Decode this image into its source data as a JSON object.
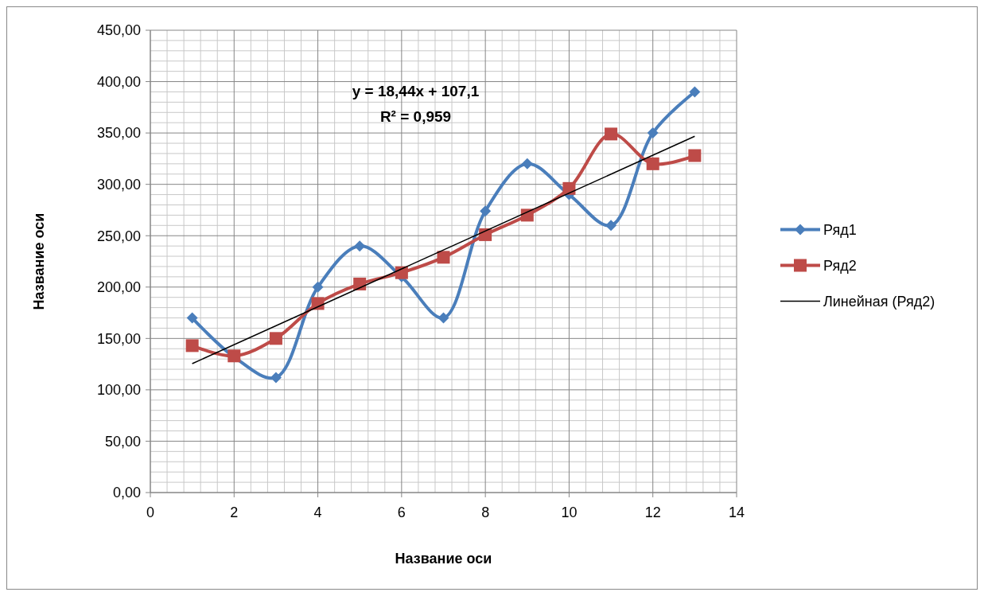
{
  "chart_data": {
    "type": "line",
    "xlabel": "Название оси",
    "ylabel": "Название оси",
    "xlim": [
      0,
      14
    ],
    "xticks": [
      0,
      2,
      4,
      6,
      8,
      10,
      12,
      14
    ],
    "ylim": [
      0,
      450
    ],
    "yticks": [
      {
        "value": 0,
        "label": "0,00"
      },
      {
        "value": 50,
        "label": "50,00"
      },
      {
        "value": 100,
        "label": "100,00"
      },
      {
        "value": 150,
        "label": "150,00"
      },
      {
        "value": 200,
        "label": "200,00"
      },
      {
        "value": 250,
        "label": "250,00"
      },
      {
        "value": 300,
        "label": "300,00"
      },
      {
        "value": 350,
        "label": "350,00"
      },
      {
        "value": 400,
        "label": "400,00"
      },
      {
        "value": 450,
        "label": "450,00"
      }
    ],
    "grid": true,
    "legend": "right",
    "x": [
      1,
      2,
      3,
      4,
      5,
      6,
      7,
      8,
      9,
      10,
      11,
      12,
      13
    ],
    "series": [
      {
        "name": "Ряд1",
        "color": "#4a7ebb",
        "marker": "diamond",
        "values": [
          170,
          132,
          112,
          200,
          240,
          210,
          170,
          274,
          320,
          290,
          260,
          350,
          390
        ]
      },
      {
        "name": "Ряд2",
        "color": "#be4b48",
        "marker": "square",
        "values": [
          143,
          133,
          150,
          184,
          203,
          214,
          229,
          251,
          270,
          296,
          349,
          320,
          328
        ]
      },
      {
        "name": "Линейная (Ряд2)",
        "color": "#000000",
        "marker": "none",
        "x": [
          1,
          13
        ],
        "values": [
          125.5,
          346.8
        ]
      }
    ],
    "annotations": [
      "y = 18,44x + 107,1",
      "R² = 0,959"
    ]
  }
}
